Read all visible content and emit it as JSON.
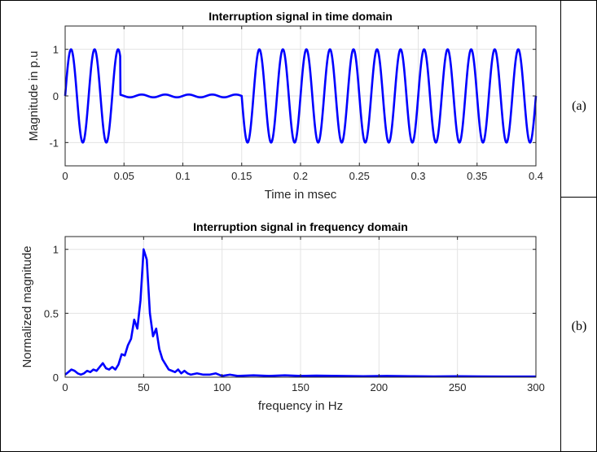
{
  "figure": {
    "panel_labels": [
      "(a)",
      "(b)"
    ]
  },
  "chart_data": [
    {
      "type": "line",
      "title": "Interruption signal in time domain",
      "xlabel": "Time in msec",
      "ylabel": "Magnitude in p.u",
      "xlim": [
        0,
        0.4
      ],
      "ylim": [
        -1.5,
        1.5
      ],
      "xticks": [
        0,
        0.05,
        0.1,
        0.15,
        0.2,
        0.25,
        0.3,
        0.35,
        0.4
      ],
      "xtick_labels": [
        "0",
        "0.05",
        "0.1",
        "0.15",
        "0.2",
        "0.25",
        "0.3",
        "0.35",
        "0.4"
      ],
      "yticks": [
        1,
        0,
        -1
      ],
      "ytick_labels": [
        "1",
        "0",
        "-1"
      ],
      "grid": true,
      "color": "#0000ff",
      "series": [
        {
          "signal": "sine",
          "amplitude": 1.0,
          "period": 0.02,
          "interruption_start": 0.047,
          "interruption_end": 0.15,
          "residual_amplitude": 0.03,
          "residual_period": 0.02
        }
      ]
    },
    {
      "type": "line",
      "title": "Interruption signal in frequency domain",
      "xlabel": "frequency in Hz",
      "ylabel": "Normalized magnitude",
      "xlim": [
        0,
        300
      ],
      "ylim": [
        0,
        1.1
      ],
      "xticks": [
        0,
        50,
        100,
        150,
        200,
        250,
        300
      ],
      "xtick_labels": [
        "0",
        "50",
        "100",
        "150",
        "200",
        "250",
        "300"
      ],
      "yticks": [
        1,
        0.5,
        0
      ],
      "ytick_labels": [
        "1",
        "0.5",
        "0"
      ],
      "grid": true,
      "color": "#0000ff",
      "series": [
        {
          "x": [
            0,
            2,
            4,
            6,
            8,
            10,
            12,
            14,
            16,
            18,
            20,
            22,
            24,
            26,
            28,
            30,
            32,
            34,
            36,
            38,
            40,
            42,
            44,
            46,
            48,
            50,
            52,
            54,
            56,
            58,
            60,
            62,
            64,
            66,
            68,
            70,
            72,
            74,
            76,
            78,
            80,
            84,
            88,
            92,
            96,
            100,
            105,
            110,
            120,
            130,
            140,
            150,
            160,
            175,
            190,
            205,
            220,
            235,
            250,
            265,
            280,
            300
          ],
          "y": [
            0.02,
            0.04,
            0.06,
            0.05,
            0.03,
            0.02,
            0.03,
            0.05,
            0.04,
            0.06,
            0.05,
            0.08,
            0.11,
            0.07,
            0.06,
            0.08,
            0.06,
            0.1,
            0.18,
            0.17,
            0.25,
            0.3,
            0.45,
            0.38,
            0.6,
            1.0,
            0.92,
            0.5,
            0.32,
            0.38,
            0.22,
            0.14,
            0.1,
            0.06,
            0.05,
            0.04,
            0.06,
            0.03,
            0.05,
            0.03,
            0.02,
            0.03,
            0.02,
            0.02,
            0.03,
            0.01,
            0.02,
            0.01,
            0.015,
            0.01,
            0.015,
            0.01,
            0.012,
            0.01,
            0.008,
            0.01,
            0.008,
            0.006,
            0.008,
            0.006,
            0.005,
            0.005
          ]
        }
      ]
    }
  ]
}
